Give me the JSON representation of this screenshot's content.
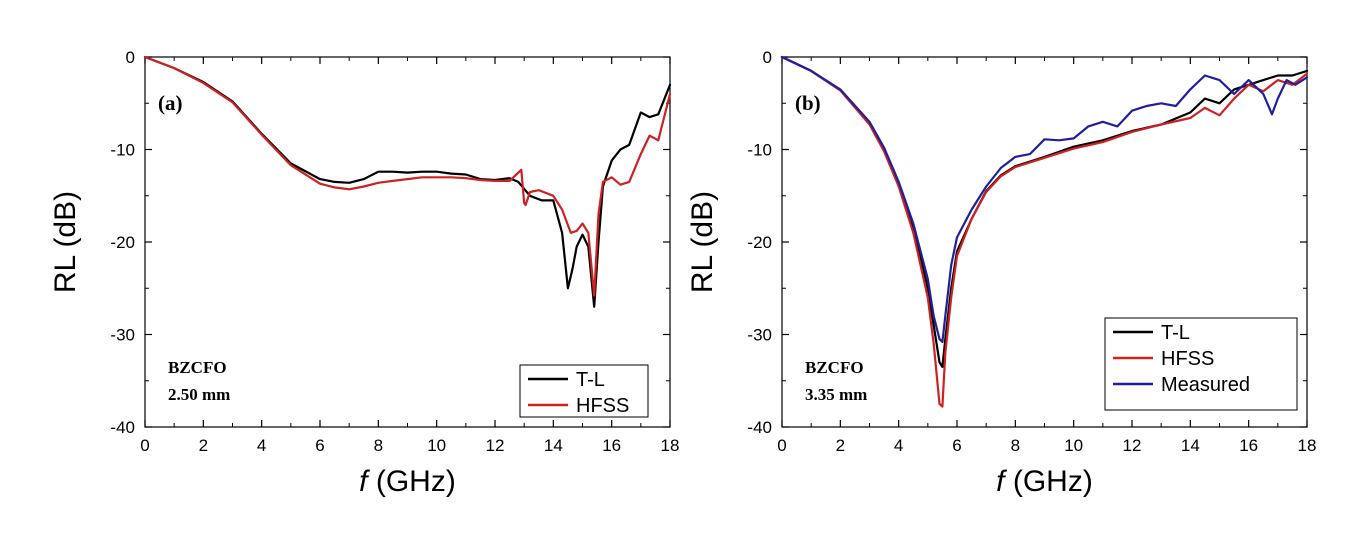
{
  "chart_data": [
    {
      "type": "line",
      "panel_label": "(a)",
      "annotation_line1": "BZCFO",
      "annotation_line2": "2.50 mm",
      "xlabel_italic": "f",
      "xlabel_rest": " (GHz)",
      "ylabel": "RL (dB)",
      "xlim": [
        0,
        18
      ],
      "ylim": [
        -40,
        0
      ],
      "xticks": [
        0,
        2,
        4,
        6,
        8,
        10,
        12,
        14,
        16,
        18
      ],
      "yticks": [
        0,
        -10,
        -20,
        -30,
        -40
      ],
      "legend_position": "bottom-right",
      "series": [
        {
          "name": "T-L",
          "color": "#000000",
          "x": [
            0,
            1,
            2,
            3,
            4,
            5,
            6,
            6.5,
            7,
            7.5,
            8,
            8.5,
            9,
            9.5,
            10,
            10.5,
            11,
            11.5,
            12,
            12.5,
            12.8,
            13.2,
            13.6,
            14,
            14.3,
            14.5,
            14.65,
            14.8,
            15,
            15.2,
            15.4,
            15.55,
            15.7,
            16,
            16.3,
            16.6,
            17,
            17.3,
            17.6,
            18
          ],
          "y": [
            0,
            -1.2,
            -2.7,
            -4.8,
            -8.3,
            -11.5,
            -13.2,
            -13.5,
            -13.6,
            -13.2,
            -12.4,
            -12.4,
            -12.5,
            -12.4,
            -12.4,
            -12.6,
            -12.7,
            -13.2,
            -13.3,
            -13.1,
            -13.5,
            -15.0,
            -15.5,
            -15.5,
            -19.0,
            -25.0,
            -23.0,
            -20.5,
            -19.2,
            -20.5,
            -27.0,
            -20.0,
            -14.0,
            -11.2,
            -10.0,
            -9.5,
            -6.0,
            -6.5,
            -6.2,
            -3.0
          ]
        },
        {
          "name": "HFSS",
          "color": "#cc2222",
          "x": [
            0,
            1,
            2,
            3,
            4,
            5,
            6,
            6.5,
            7,
            7.5,
            8,
            8.5,
            9,
            9.5,
            10,
            10.5,
            11,
            11.5,
            12,
            12.5,
            12.9,
            13.0,
            13.05,
            13.2,
            13.5,
            14,
            14.3,
            14.6,
            14.8,
            15,
            15.2,
            15.4,
            15.55,
            15.7,
            16,
            16.3,
            16.6,
            17,
            17.3,
            17.6,
            18
          ],
          "y": [
            0,
            -1.2,
            -2.8,
            -4.9,
            -8.4,
            -11.7,
            -13.7,
            -14.1,
            -14.3,
            -14.0,
            -13.6,
            -13.4,
            -13.2,
            -13.0,
            -13.0,
            -13.0,
            -13.1,
            -13.3,
            -13.4,
            -13.4,
            -12.2,
            -15.8,
            -16.0,
            -14.6,
            -14.4,
            -15.0,
            -16.5,
            -19.0,
            -18.8,
            -18.0,
            -19.0,
            -25.8,
            -17.0,
            -13.5,
            -13.0,
            -13.8,
            -13.5,
            -10.5,
            -8.5,
            -9.0,
            -4.0
          ]
        }
      ]
    },
    {
      "type": "line",
      "panel_label": "(b)",
      "annotation_line1": "BZCFO",
      "annotation_line2": "3.35 mm",
      "xlabel_italic": "f",
      "xlabel_rest": " (GHz)",
      "ylabel": "RL (dB)",
      "xlim": [
        0,
        18
      ],
      "ylim": [
        -40,
        0
      ],
      "xticks": [
        0,
        2,
        4,
        6,
        8,
        10,
        12,
        14,
        16,
        18
      ],
      "yticks": [
        0,
        -10,
        -20,
        -30,
        -40
      ],
      "legend_position": "bottom-right",
      "series": [
        {
          "name": "T-L",
          "color": "#000000",
          "x": [
            0,
            1,
            2,
            3,
            3.5,
            4,
            4.5,
            5,
            5.2,
            5.4,
            5.5,
            5.6,
            5.8,
            6,
            6.5,
            7,
            7.5,
            8,
            9,
            10,
            11,
            12,
            13,
            14,
            14.5,
            15,
            15.5,
            16,
            16.5,
            17,
            17.5,
            18
          ],
          "y": [
            0,
            -1.5,
            -3.6,
            -7.2,
            -10.0,
            -13.7,
            -18.5,
            -25.0,
            -29.0,
            -33.0,
            -33.5,
            -30.5,
            -25.0,
            -21.0,
            -17.5,
            -14.5,
            -12.8,
            -11.8,
            -10.8,
            -9.7,
            -9.0,
            -8.0,
            -7.3,
            -6.0,
            -4.5,
            -5.0,
            -3.5,
            -3.0,
            -2.5,
            -2.0,
            -2.0,
            -1.5
          ]
        },
        {
          "name": "HFSS",
          "color": "#cc2222",
          "x": [
            0,
            1,
            2,
            3,
            3.5,
            4,
            4.5,
            5,
            5.2,
            5.4,
            5.5,
            5.6,
            5.8,
            6,
            6.5,
            7,
            7.5,
            8,
            9,
            10,
            11,
            12,
            13,
            14,
            14.5,
            15,
            15.5,
            16,
            16.5,
            17,
            17.5,
            18
          ],
          "y": [
            0,
            -1.5,
            -3.6,
            -7.3,
            -10.2,
            -14.0,
            -19.0,
            -26.0,
            -31.0,
            -37.5,
            -37.8,
            -32.0,
            -26.0,
            -21.5,
            -17.5,
            -14.6,
            -12.9,
            -11.9,
            -10.9,
            -9.9,
            -9.2,
            -8.1,
            -7.3,
            -6.6,
            -5.5,
            -6.3,
            -4.5,
            -3.0,
            -3.7,
            -2.5,
            -3.0,
            -1.8
          ]
        },
        {
          "name": "Measured",
          "color": "#1f1fa0",
          "x": [
            0,
            1,
            2,
            3,
            3.5,
            4,
            4.5,
            5,
            5.2,
            5.4,
            5.5,
            5.6,
            5.8,
            6,
            6.5,
            7,
            7.5,
            8,
            8.5,
            9,
            9.5,
            10,
            10.5,
            11,
            11.5,
            12,
            12.5,
            13,
            13.5,
            14,
            14.5,
            15,
            15.5,
            16,
            16.5,
            16.8,
            17,
            17.3,
            17.6,
            18
          ],
          "y": [
            0,
            -1.5,
            -3.5,
            -7.0,
            -9.8,
            -13.5,
            -18.0,
            -24.0,
            -28.0,
            -30.5,
            -30.8,
            -28.0,
            -22.5,
            -19.5,
            -16.5,
            -14.0,
            -12.0,
            -10.8,
            -10.5,
            -8.9,
            -9.0,
            -8.8,
            -7.5,
            -7.0,
            -7.5,
            -5.8,
            -5.3,
            -5.0,
            -5.3,
            -3.5,
            -2.0,
            -2.5,
            -4.0,
            -2.5,
            -4.0,
            -6.2,
            -4.5,
            -2.5,
            -3.0,
            -2.2
          ]
        }
      ]
    }
  ]
}
